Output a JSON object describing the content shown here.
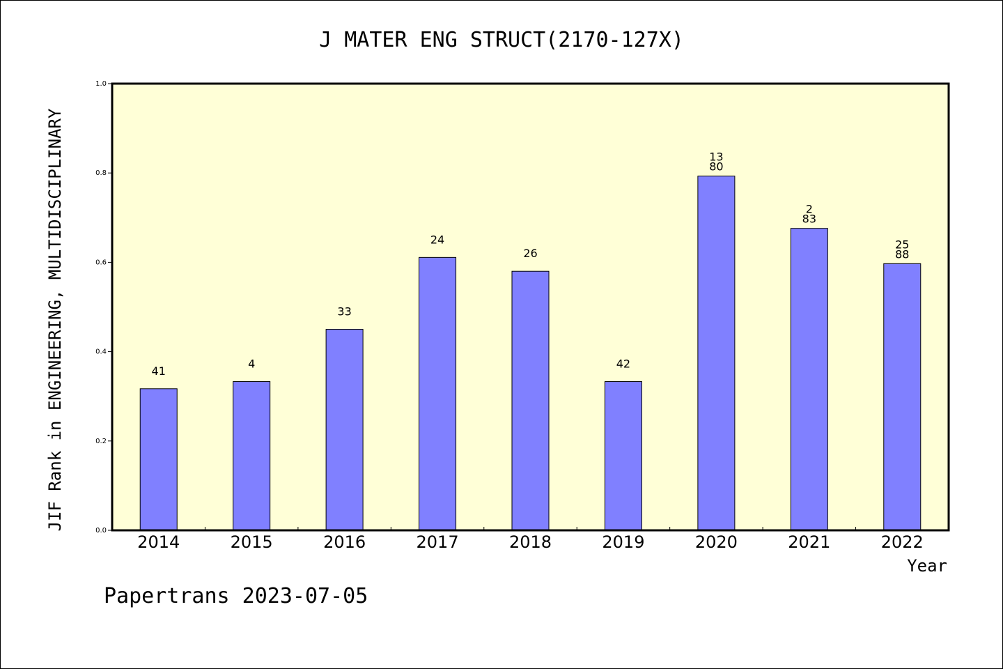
{
  "chart_data": {
    "type": "bar",
    "title": "J MATER ENG STRUCT(2170-127X)",
    "xlabel": "Year",
    "ylabel": "JIF Rank in ENGINEERING, MULTIDISCIPLINARY",
    "ylim": [
      0.0,
      1.0
    ],
    "yticks": [
      "0.0",
      "0.2",
      "0.4",
      "0.6",
      "0.8",
      "1.0"
    ],
    "categories": [
      "2014",
      "2015",
      "2016",
      "2017",
      "2018",
      "2019",
      "2020",
      "2021",
      "2022"
    ],
    "values": [
      0.317,
      0.333,
      0.45,
      0.611,
      0.58,
      0.333,
      0.793,
      0.676,
      0.597
    ],
    "labels": [
      [
        "41"
      ],
      [
        "4"
      ],
      [
        "33"
      ],
      [
        "24"
      ],
      [
        "26"
      ],
      [
        "42"
      ],
      [
        "13",
        "80"
      ],
      [
        "2",
        "83"
      ],
      [
        "25",
        "88"
      ]
    ],
    "grid": false,
    "colors": {
      "plot_background": "#ffffd7",
      "bar_fill": "#8080ff",
      "bar_stroke": "#000000"
    }
  },
  "footer": {
    "text": "Papertrans 2023-07-05"
  }
}
